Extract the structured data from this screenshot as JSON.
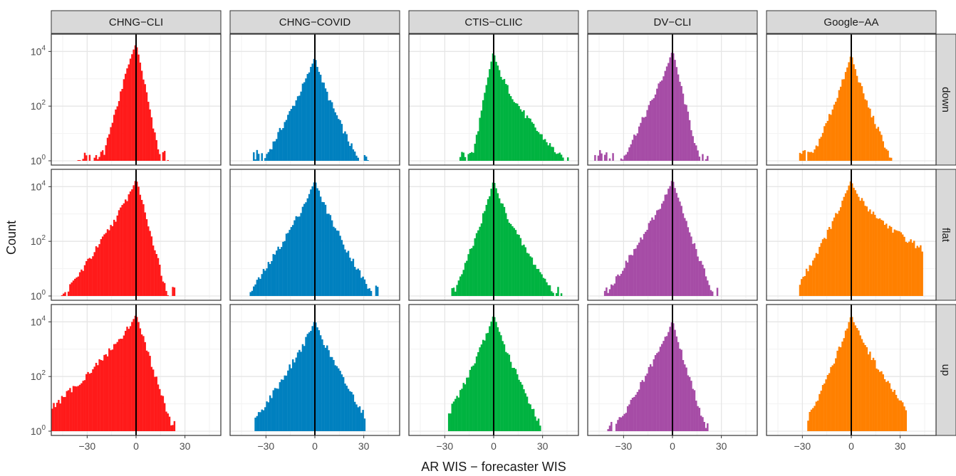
{
  "chart_data": {
    "type": "histogram-facet-grid",
    "xlabel": "AR WIS − forecaster WIS",
    "ylabel": "Count",
    "y_scale": "log10",
    "ylim": [
      1,
      30000
    ],
    "xlim": [
      -52,
      52
    ],
    "x_ticks": [
      "−30",
      "0",
      "30"
    ],
    "x_tick_values": [
      -30,
      0,
      30
    ],
    "y_ticks": [
      {
        "base": "10",
        "exp": "0",
        "value": 1
      },
      {
        "base": "10",
        "exp": "2",
        "value": 100
      },
      {
        "base": "10",
        "exp": "4",
        "value": 10000
      }
    ],
    "vline_x": 0,
    "bin_width": 1,
    "grid": true,
    "columns": [
      {
        "name": "CHNG−CLI",
        "color": "#ff1a1a"
      },
      {
        "name": "CHNG−COVID",
        "color": "#0080bf"
      },
      {
        "name": "CTIS−CLIIC",
        "color": "#00b340"
      },
      {
        "name": "DV−CLI",
        "color": "#a64ca6"
      },
      {
        "name": "Google−AA",
        "color": "#ff8000"
      }
    ],
    "rows": [
      "down",
      "flat",
      "up"
    ],
    "panels": [
      [
        {
          "range": [
            -39,
            20
          ],
          "peak": 20000,
          "peak_x": 0,
          "left_scale": 5.5,
          "right_scale": 3.5,
          "left_pow": 1.1,
          "right_pow": 1.0,
          "tail_min": 1.2
        },
        {
          "range": [
            -38,
            36
          ],
          "peak": 7000,
          "peak_x": 0,
          "left_scale": 6.5,
          "right_scale": 5.0,
          "left_pow": 0.85,
          "right_pow": 0.8,
          "tail_min": 1.2
        },
        {
          "range": [
            -21,
            46
          ],
          "peak": 12000,
          "peak_x": 0,
          "left_scale": 3.3,
          "right_scale": 5.0,
          "left_pow": 1.0,
          "right_pow": 0.65,
          "tail_min": 1.2
        },
        {
          "range": [
            -48,
            22
          ],
          "peak": 12000,
          "peak_x": 0,
          "left_scale": 6.0,
          "right_scale": 3.8,
          "left_pow": 0.85,
          "right_pow": 0.95,
          "tail_min": 1.2
        },
        {
          "range": [
            -32,
            25
          ],
          "peak": 9000,
          "peak_x": 0,
          "left_scale": 5.0,
          "right_scale": 4.5,
          "left_pow": 0.85,
          "right_pow": 0.8,
          "tail_min": 1.2
        }
      ],
      [
        {
          "range": [
            -46,
            25
          ],
          "peak": 20000,
          "peak_x": 0,
          "left_scale": 8.0,
          "right_scale": 4.5,
          "left_pow": 0.85,
          "right_pow": 1.0,
          "tail_min": 1.2
        },
        {
          "range": [
            -40,
            39
          ],
          "peak": 18000,
          "peak_x": 0,
          "left_scale": 7.5,
          "right_scale": 6.5,
          "left_pow": 0.85,
          "right_pow": 0.85,
          "tail_min": 1.2
        },
        {
          "range": [
            -26,
            43
          ],
          "peak": 20000,
          "peak_x": 0,
          "left_scale": 4.5,
          "right_scale": 5.5,
          "left_pow": 0.85,
          "right_pow": 0.75,
          "tail_min": 1.2
        },
        {
          "range": [
            -44,
            28
          ],
          "peak": 20000,
          "peak_x": 0,
          "left_scale": 7.5,
          "right_scale": 5.0,
          "left_pow": 0.85,
          "right_pow": 0.9,
          "tail_min": 1.2
        },
        {
          "range": [
            -32,
            44
          ],
          "peak": 20000,
          "peak_x": 0,
          "left_scale": 6.5,
          "right_scale": 9.0,
          "left_pow": 0.85,
          "right_pow": 0.6,
          "tail_min": 1.2
        }
      ],
      [
        {
          "range": [
            -52,
            25
          ],
          "peak": 20000,
          "peak_x": 0,
          "left_scale": 11.0,
          "right_scale": 5.0,
          "left_pow": 0.8,
          "right_pow": 0.95,
          "tail_min": 1.2
        },
        {
          "range": [
            -37,
            31
          ],
          "peak": 12000,
          "peak_x": 0,
          "left_scale": 8.0,
          "right_scale": 7.0,
          "left_pow": 0.85,
          "right_pow": 0.85,
          "tail_min": 1.2
        },
        {
          "range": [
            -28,
            29
          ],
          "peak": 20000,
          "peak_x": 0,
          "left_scale": 6.0,
          "right_scale": 5.5,
          "left_pow": 0.85,
          "right_pow": 0.85,
          "tail_min": 1.2
        },
        {
          "range": [
            -40,
            22
          ],
          "peak": 12000,
          "peak_x": 0,
          "left_scale": 7.0,
          "right_scale": 4.5,
          "left_pow": 0.85,
          "right_pow": 0.9,
          "tail_min": 1.2
        },
        {
          "range": [
            -27,
            34
          ],
          "peak": 20000,
          "peak_x": 0,
          "left_scale": 5.5,
          "right_scale": 7.0,
          "left_pow": 0.85,
          "right_pow": 0.8,
          "tail_min": 1.2
        }
      ]
    ]
  }
}
